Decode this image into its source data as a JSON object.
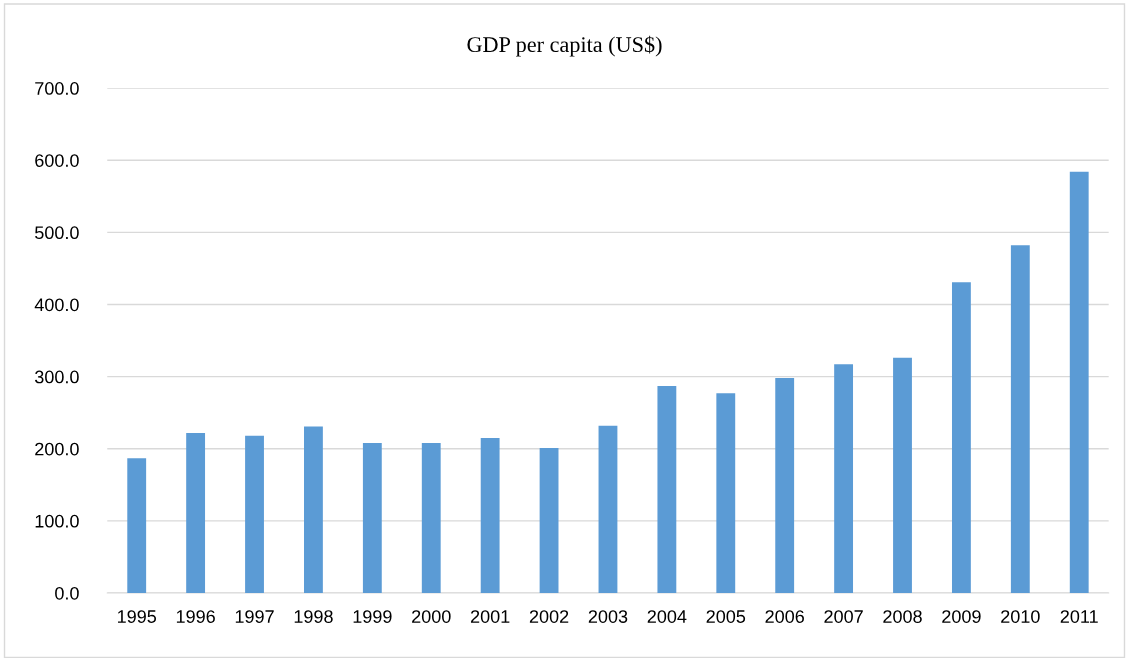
{
  "chart_data": {
    "type": "bar",
    "title": "GDP per capita (US$)",
    "categories": [
      "1995",
      "1996",
      "1997",
      "1998",
      "1999",
      "2000",
      "2001",
      "2002",
      "2003",
      "2004",
      "2005",
      "2006",
      "2007",
      "2008",
      "2009",
      "2010",
      "2011"
    ],
    "values": [
      187,
      222,
      218,
      231,
      208,
      208,
      215,
      201,
      232,
      287,
      277,
      298,
      317,
      326,
      431,
      482,
      584
    ],
    "color": "#5b9bd5",
    "ylim": [
      0,
      700
    ],
    "yticks": [
      {
        "value": 0,
        "label": "0.0"
      },
      {
        "value": 100,
        "label": "100.0"
      },
      {
        "value": 200,
        "label": "200.0"
      },
      {
        "value": 300,
        "label": "300.0"
      },
      {
        "value": 400,
        "label": "400.0"
      },
      {
        "value": 500,
        "label": "500.0"
      },
      {
        "value": 600,
        "label": "600.0"
      },
      {
        "value": 700,
        "label": "700.0"
      }
    ],
    "grid": "y"
  }
}
